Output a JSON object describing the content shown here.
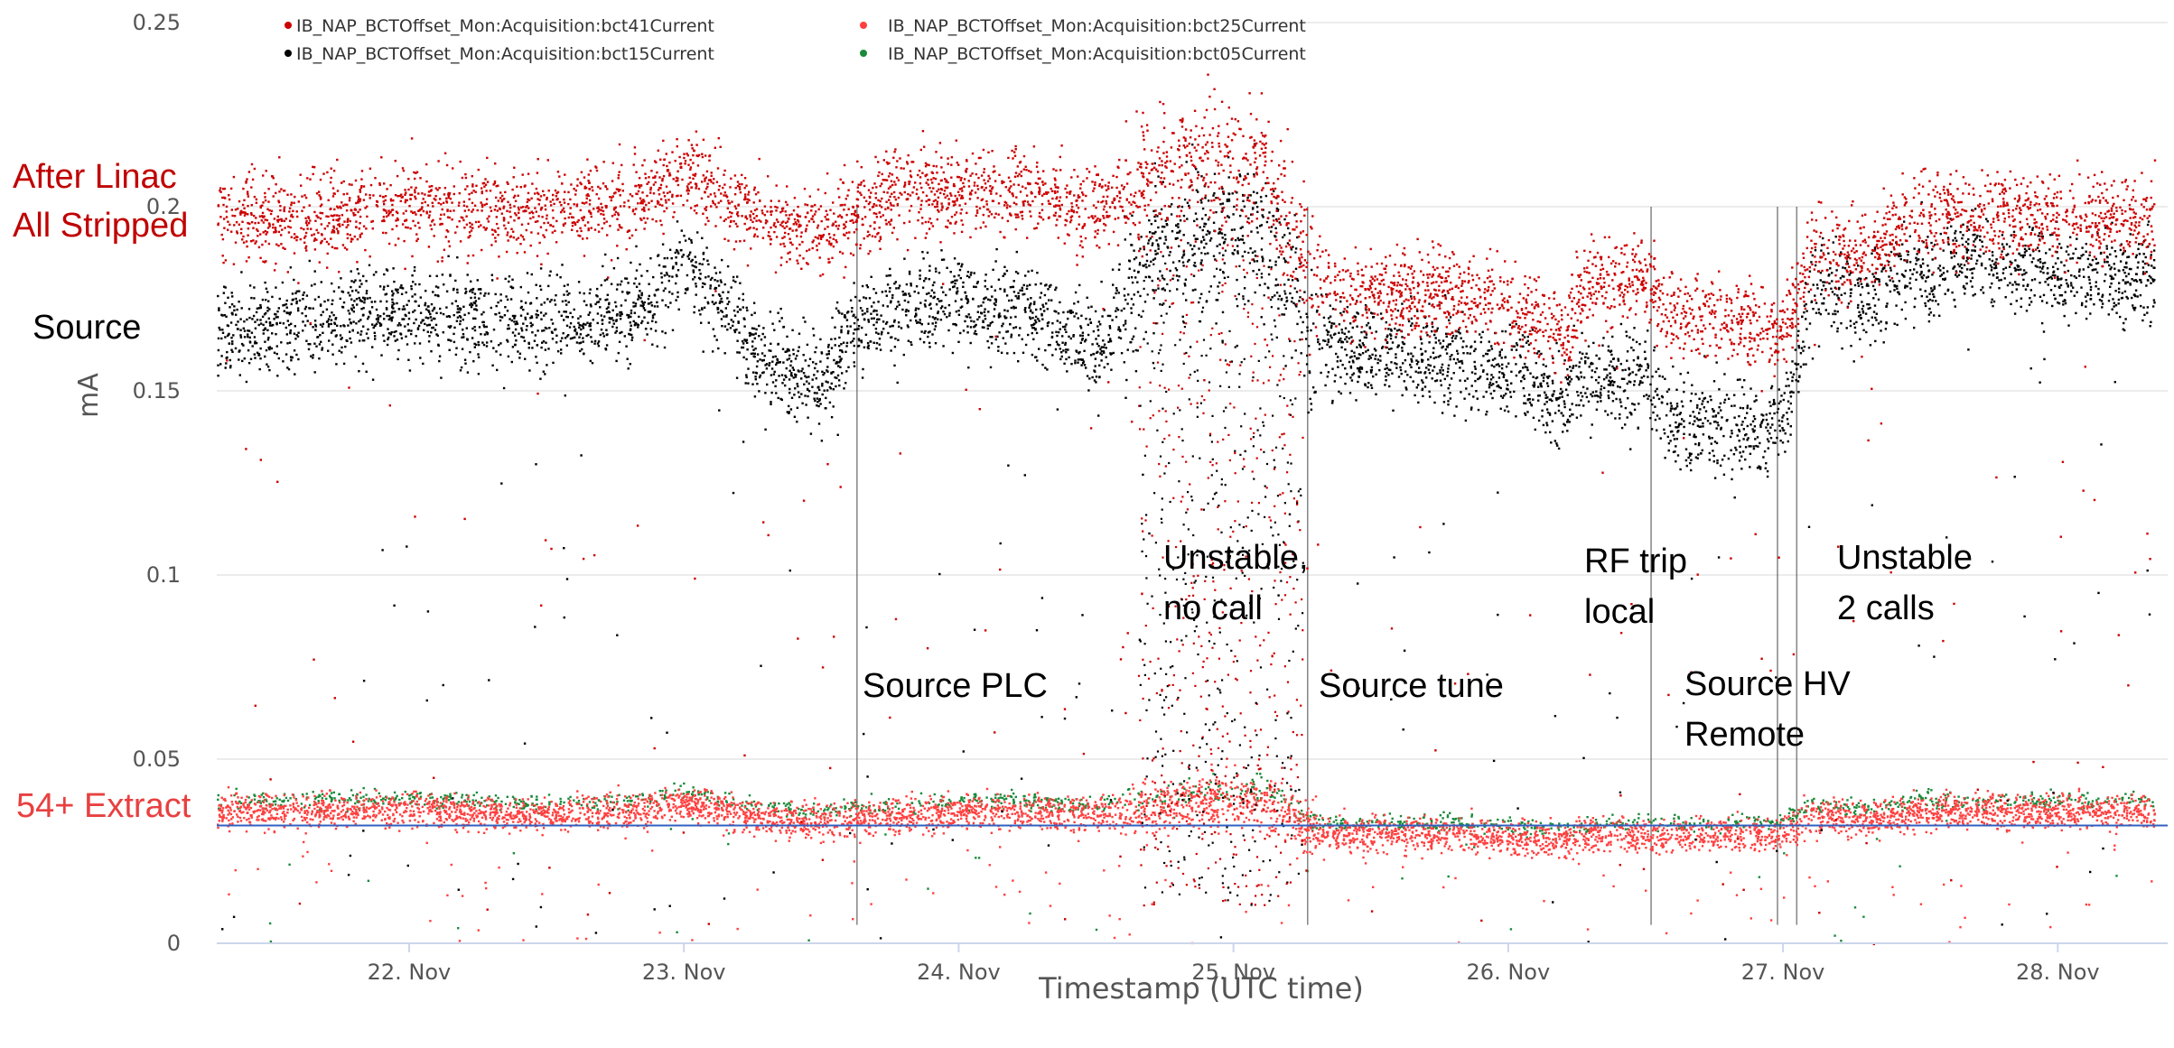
{
  "chart_data": {
    "type": "scatter",
    "title": "",
    "xlabel": "Timestamp (UTC time)",
    "ylabel": "mA",
    "xlim": [
      21.3,
      28.4
    ],
    "ylim": [
      0,
      0.25
    ],
    "x_ticks": [
      {
        "value": 22,
        "label": "22. Nov"
      },
      {
        "value": 23,
        "label": "23. Nov"
      },
      {
        "value": 24,
        "label": "24. Nov"
      },
      {
        "value": 25,
        "label": "25. Nov"
      },
      {
        "value": 26,
        "label": "26. Nov"
      },
      {
        "value": 27,
        "label": "27. Nov"
      },
      {
        "value": 28,
        "label": "28. Nov"
      }
    ],
    "y_ticks": [
      {
        "value": 0,
        "label": "0"
      },
      {
        "value": 0.05,
        "label": "0.05"
      },
      {
        "value": 0.1,
        "label": "0.1"
      },
      {
        "value": 0.15,
        "label": "0.15"
      },
      {
        "value": 0.2,
        "label": "0.2"
      },
      {
        "value": 0.25,
        "label": "0.25"
      }
    ],
    "grid": {
      "horizontal": true,
      "vertical": false
    },
    "legend_position": "top",
    "series": [
      {
        "name": "IB_NAP_BCTOffset_Mon:Acquisition:bct41Current",
        "color": "#cc0000",
        "x": [
          21.35,
          21.6,
          22.0,
          22.4,
          22.8,
          23.0,
          23.3,
          23.5,
          23.6,
          23.8,
          24.0,
          24.2,
          24.5,
          24.7,
          24.9,
          25.1,
          25.3,
          25.5,
          25.8,
          26.0,
          26.2,
          26.3,
          26.5,
          26.6,
          26.8,
          27.0,
          27.1,
          27.3,
          27.5,
          27.8,
          28.0,
          28.3
        ],
        "y": [
          0.198,
          0.197,
          0.2,
          0.199,
          0.201,
          0.21,
          0.197,
          0.193,
          0.197,
          0.205,
          0.204,
          0.205,
          0.2,
          0.207,
          0.212,
          0.212,
          0.18,
          0.176,
          0.177,
          0.174,
          0.165,
          0.18,
          0.18,
          0.17,
          0.17,
          0.165,
          0.188,
          0.188,
          0.198,
          0.198,
          0.198,
          0.197
        ]
      },
      {
        "name": "IB_NAP_BCTOffset_Mon:Acquisition:bct25Current",
        "color": "#ff4040",
        "x": [
          21.35,
          21.6,
          22.0,
          22.4,
          22.8,
          23.0,
          23.3,
          23.5,
          23.6,
          23.8,
          24.0,
          24.2,
          24.5,
          24.7,
          24.9,
          25.1,
          25.3,
          25.5,
          25.8,
          26.0,
          26.2,
          26.3,
          26.5,
          26.6,
          26.8,
          27.0,
          27.1,
          27.3,
          27.5,
          27.8,
          28.0,
          28.3
        ],
        "y": [
          0.036,
          0.036,
          0.037,
          0.035,
          0.036,
          0.038,
          0.034,
          0.033,
          0.034,
          0.035,
          0.036,
          0.036,
          0.035,
          0.037,
          0.039,
          0.039,
          0.03,
          0.03,
          0.03,
          0.029,
          0.028,
          0.03,
          0.03,
          0.03,
          0.03,
          0.03,
          0.035,
          0.034,
          0.036,
          0.036,
          0.036,
          0.036
        ]
      },
      {
        "name": "IB_NAP_BCTOffset_Mon:Acquisition:bct15Current",
        "color": "#000000",
        "x": [
          21.35,
          21.6,
          22.0,
          22.4,
          22.8,
          23.0,
          23.3,
          23.5,
          23.6,
          23.8,
          24.0,
          24.2,
          24.5,
          24.7,
          24.9,
          25.1,
          25.3,
          25.5,
          25.8,
          26.0,
          26.2,
          26.3,
          26.5,
          26.6,
          26.8,
          27.0,
          27.1,
          27.3,
          27.5,
          27.8,
          28.0,
          28.3
        ],
        "y": [
          0.167,
          0.168,
          0.172,
          0.168,
          0.17,
          0.186,
          0.158,
          0.152,
          0.166,
          0.173,
          0.175,
          0.172,
          0.162,
          0.186,
          0.193,
          0.195,
          0.163,
          0.16,
          0.159,
          0.156,
          0.147,
          0.154,
          0.154,
          0.142,
          0.14,
          0.14,
          0.178,
          0.175,
          0.184,
          0.185,
          0.182,
          0.181
        ]
      },
      {
        "name": "IB_NAP_BCTOffset_Mon:Acquisition:bct05Current",
        "color": "#1a8a3a",
        "x": [
          21.35,
          21.6,
          22.0,
          22.4,
          22.8,
          23.0,
          23.3,
          23.5,
          23.6,
          23.8,
          24.0,
          24.2,
          24.5,
          24.7,
          24.9,
          25.1,
          25.3,
          25.5,
          25.8,
          26.0,
          26.2,
          26.3,
          26.5,
          26.6,
          26.8,
          27.0,
          27.1,
          27.3,
          27.5,
          27.8,
          28.0,
          28.3
        ],
        "y": [
          0.039,
          0.039,
          0.04,
          0.038,
          0.039,
          0.041,
          0.037,
          0.036,
          0.037,
          0.038,
          0.039,
          0.039,
          0.038,
          0.04,
          0.042,
          0.042,
          0.033,
          0.033,
          0.033,
          0.032,
          0.031,
          0.033,
          0.033,
          0.033,
          0.033,
          0.033,
          0.038,
          0.037,
          0.039,
          0.039,
          0.039,
          0.039
        ]
      }
    ],
    "reference_line": {
      "y": 0.032,
      "color": "#3060c0"
    },
    "annotations": [
      {
        "text": "After Linac",
        "color": "#c00000"
      },
      {
        "text": "All Stripped",
        "color": "#c00000"
      },
      {
        "text": "Source",
        "color": "#000000"
      },
      {
        "text": "54+ Extract",
        "color": "#e84040"
      },
      {
        "text": "Source PLC",
        "color": "#000000"
      },
      {
        "text": "Unstable,",
        "color": "#000000"
      },
      {
        "text": "no call",
        "color": "#000000"
      },
      {
        "text": "Source tune",
        "color": "#000000"
      },
      {
        "text": "RF trip",
        "color": "#000000"
      },
      {
        "text": "local",
        "color": "#000000"
      },
      {
        "text": "Source HV",
        "color": "#000000"
      },
      {
        "text": "Remote",
        "color": "#000000"
      },
      {
        "text": "Unstable",
        "color": "#000000"
      },
      {
        "text": "2 calls",
        "color": "#000000"
      }
    ],
    "colors": {
      "background": "#ffffff",
      "grid": "#e6e6e6",
      "axis": "#ccd6eb"
    }
  }
}
